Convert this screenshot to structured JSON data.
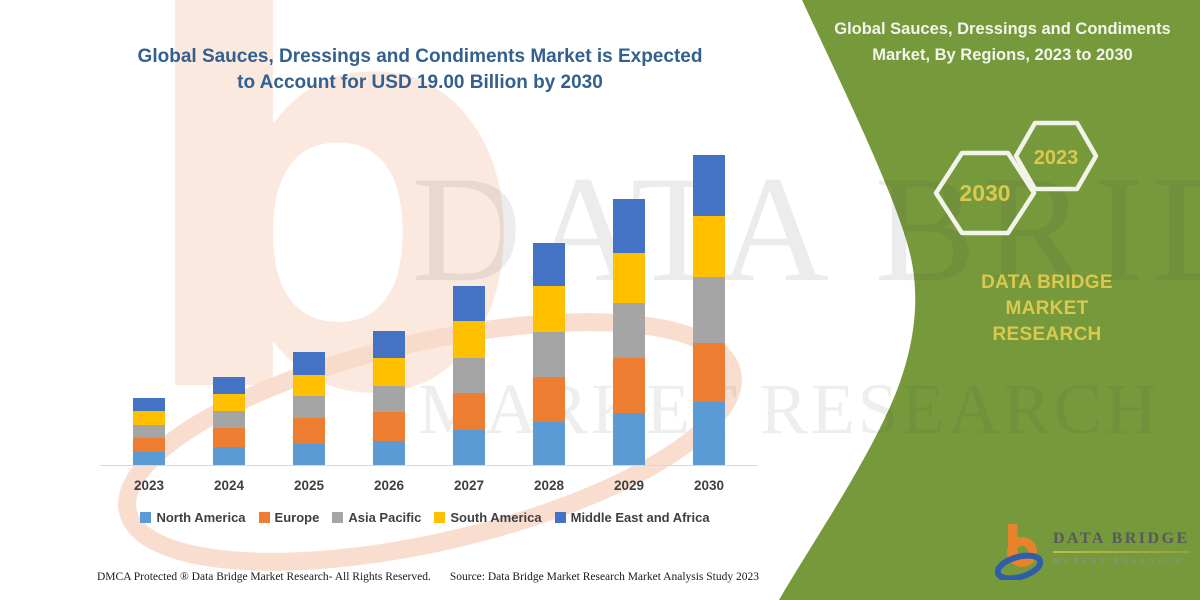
{
  "left_panel": {
    "title_line1": "Global Sauces, Dressings and Condiments Market is Expected",
    "title_line2": "to Account for USD 19.00 Billion by 2030",
    "title_color": "#33608f",
    "footer_left": "DMCA Protected ® Data Bridge Market Research-  All Rights Reserved.",
    "footer_right": "Source: Data Bridge Market Research  Market Analysis Study 2023"
  },
  "right_panel": {
    "title_line1": "Global Sauces, Dressings and Condiments",
    "title_line2": "Market, By Regions, 2023 to 2030",
    "panel_color": "#76993c",
    "gold_color": "#dac94e",
    "hexagons": [
      {
        "label": "2030"
      },
      {
        "label": "2023"
      }
    ],
    "brand_line1": "DATA BRIDGE MARKET",
    "brand_line2": "RESEARCH"
  },
  "logo": {
    "title": "DATA BRIDGE",
    "subtitle": "MARKET RESEARCH",
    "orange": "#e8832d",
    "blue": "#2f5da8"
  },
  "watermark": {
    "letter": "b",
    "text_line1": "DATA BRIDGE",
    "text_line2": "MARKET RESEARCH"
  },
  "chart_data": {
    "type": "bar",
    "stacked": true,
    "title": "Global Sauces, Dressings and Condiments Market is Expected to Account for USD 19.00 Billion by 2030",
    "unit": "USD Billion",
    "xlabel": "",
    "ylabel": "",
    "ylim": [
      0,
      19
    ],
    "grid": false,
    "legend_position": "bottom",
    "categories": [
      "2023",
      "2024",
      "2025",
      "2026",
      "2027",
      "2028",
      "2029",
      "2030"
    ],
    "series": [
      {
        "name": "North America",
        "color": "#5B9BD5",
        "values": [
          0.8,
          1.1,
          1.3,
          1.45,
          2.15,
          2.65,
          3.2,
          3.85
        ]
      },
      {
        "name": "Europe",
        "color": "#ED7D31",
        "values": [
          0.85,
          1.15,
          1.6,
          1.8,
          2.25,
          2.75,
          3.35,
          3.65
        ]
      },
      {
        "name": "Asia Pacific",
        "color": "#A5A5A5",
        "values": [
          0.8,
          1.05,
          1.35,
          1.6,
          2.15,
          2.75,
          3.35,
          4.0
        ]
      },
      {
        "name": "South America",
        "color": "#FFC000",
        "values": [
          0.85,
          1.05,
          1.25,
          1.7,
          2.25,
          2.8,
          3.1,
          3.75
        ]
      },
      {
        "name": "Middle East and Africa",
        "color": "#4472C4",
        "values": [
          0.8,
          1.05,
          1.45,
          1.65,
          2.15,
          2.65,
          3.3,
          3.75
        ]
      }
    ],
    "totals": [
      4.1,
      5.4,
      6.95,
      8.2,
      10.95,
      13.6,
      16.3,
      19.0
    ]
  }
}
